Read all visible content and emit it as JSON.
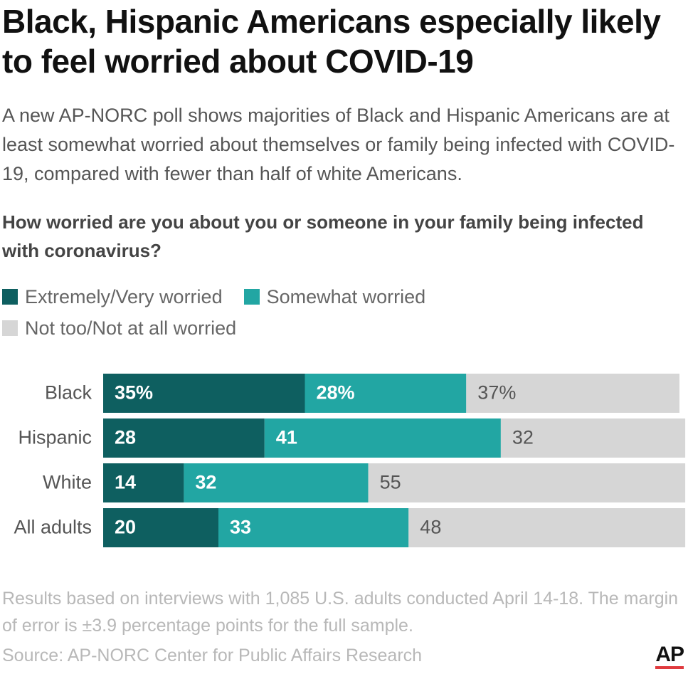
{
  "chart_data": {
    "type": "stacked-bar",
    "title": "Black, Hispanic Americans especially likely to feel worried about COVID-19",
    "subtitle": "A new AP-NORC poll shows majorities of Black and Hispanic Americans are at least somewhat worried about themselves or family being infected with COVID-19, compared with fewer than half of white Americans.",
    "question": "How worried are you about you or someone in your family being infected with coronavirus?",
    "categories": [
      "Black",
      "Hispanic",
      "White",
      "All adults"
    ],
    "series": [
      {
        "name": "Extremely/Very worried",
        "color": "#0e5f60",
        "values": [
          35,
          28,
          14,
          20
        ],
        "value_labels": [
          "35%",
          "28",
          "14",
          "20"
        ]
      },
      {
        "name": "Somewhat worried",
        "color": "#22a6a3",
        "values": [
          28,
          41,
          32,
          33
        ],
        "value_labels": [
          "28%",
          "41",
          "32",
          "33"
        ]
      },
      {
        "name": "Not too/Not at all worried",
        "color": "#d6d6d6",
        "values": [
          37,
          32,
          55,
          48
        ],
        "value_labels": [
          "37%",
          "32",
          "55",
          "48"
        ]
      }
    ],
    "note": "Results based on interviews with 1,085 U.S. adults conducted April 14-18. The margin of error is ±3.9 percentage points for the full sample.",
    "source": "Source: AP-NORC Center for Public Affairs Research",
    "logo": "AP"
  }
}
